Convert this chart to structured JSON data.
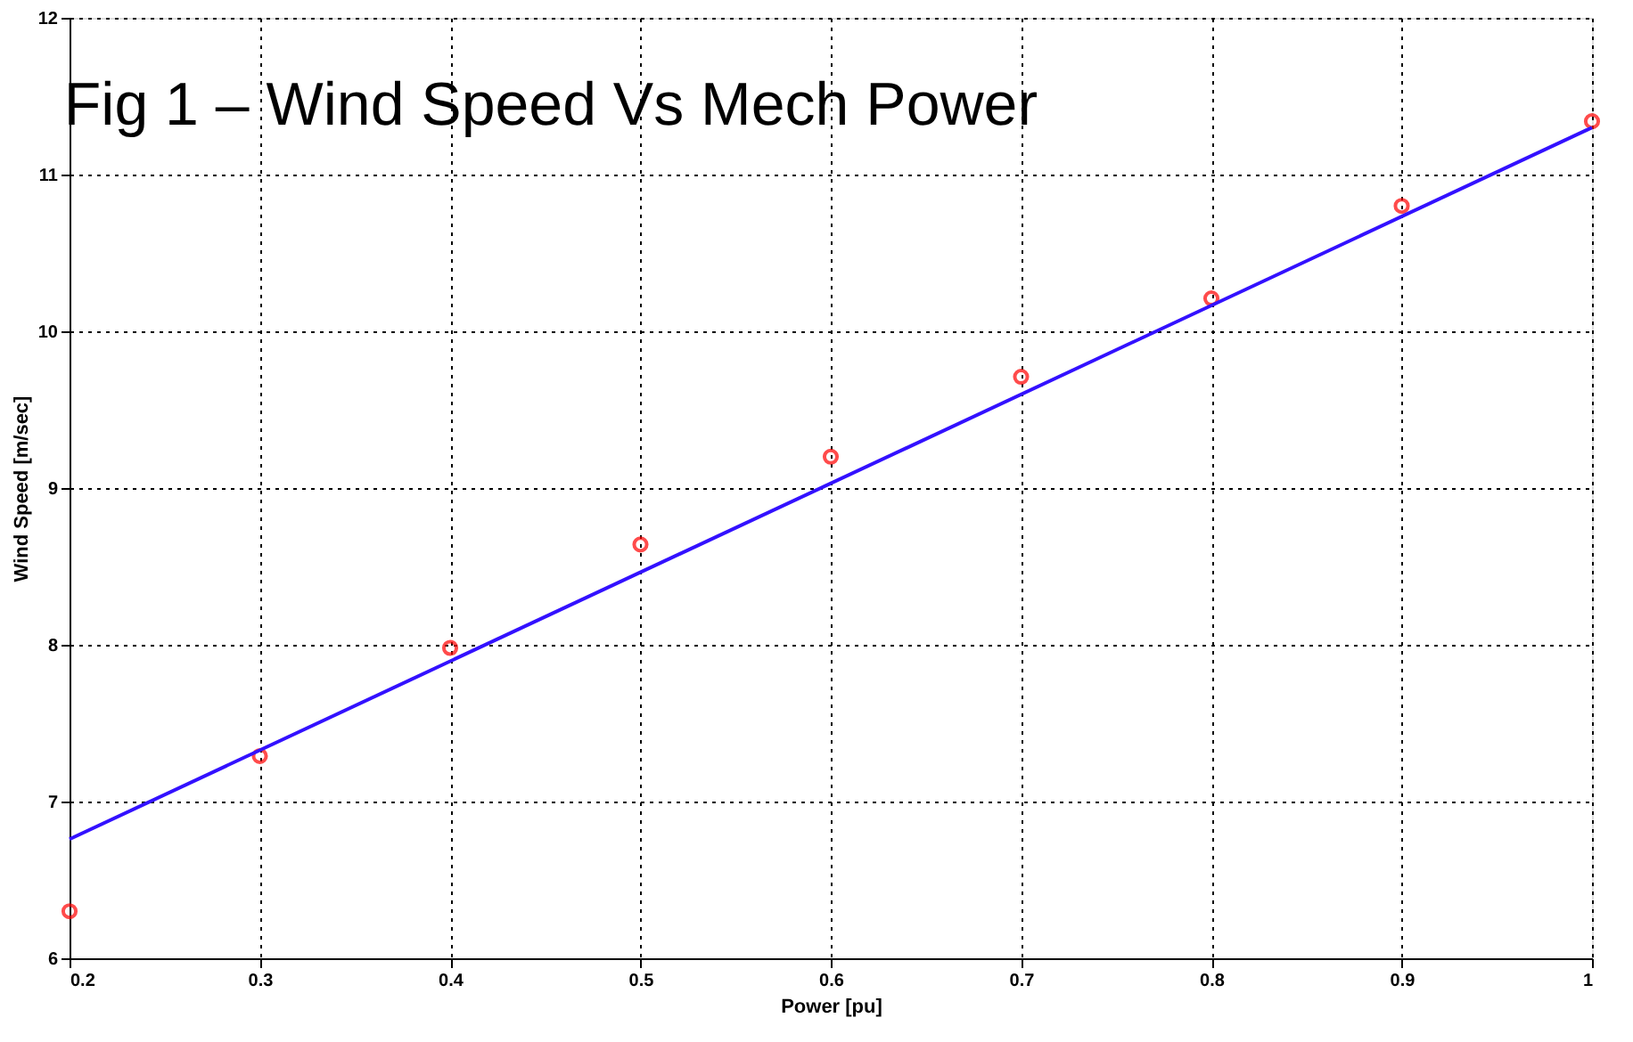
{
  "chart_data": {
    "type": "scatter",
    "title": "Fig 1 – Wind Speed Vs Mech Power",
    "xlabel": "Power [pu]",
    "ylabel": "Wind Speed [m/sec]",
    "x": [
      0.2,
      0.3,
      0.4,
      0.5,
      0.6,
      0.7,
      0.8,
      0.9,
      1.0
    ],
    "series": [
      {
        "color": "#ff0000",
        "marker": "circle",
        "values": [
          6.3,
          7.29,
          7.98,
          8.64,
          9.2,
          9.71,
          10.21,
          10.8,
          11.34
        ]
      },
      {
        "type": "line",
        "color": "#3311ff",
        "x": [
          0.2,
          1.0
        ],
        "values": [
          6.76,
          11.3
        ],
        "line_style": "solid"
      }
    ],
    "xlim": [
      0.2,
      1.0
    ],
    "xticks": [
      0.2,
      0.3,
      0.4,
      0.5,
      0.6,
      0.7,
      0.8,
      0.9,
      {
        "value": 1,
        "label": "1"
      }
    ],
    "ylim": [
      6,
      12
    ],
    "yticks": [
      6,
      7,
      8,
      9,
      10,
      11,
      12
    ],
    "grid": true
  }
}
